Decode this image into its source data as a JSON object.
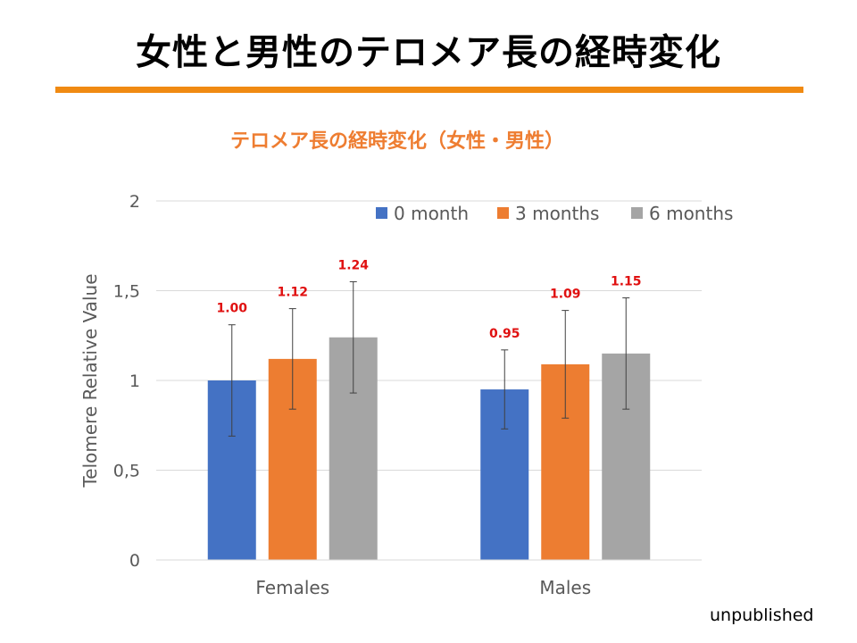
{
  "slide": {
    "title": "女性と男性のテロメア長の経時変化",
    "footnote": "unpublished"
  },
  "colors": {
    "accent_rule": "#f08a12",
    "chart_title": "#ee7d31",
    "data_label": "#e01010"
  },
  "chart_data": {
    "type": "bar",
    "title": "テロメア長の経時変化（女性・男性）",
    "xlabel": "",
    "ylabel": "Telomere Relative Value",
    "categories": [
      "Females",
      "Males"
    ],
    "ylim": [
      0,
      2
    ],
    "yticks": [
      0,
      0.5,
      1,
      1.5,
      2
    ],
    "ytick_labels": [
      "0",
      "0,5",
      "1",
      "1,5",
      "2"
    ],
    "grid": true,
    "legend_position": "top-right",
    "series": [
      {
        "name": "0 month",
        "color": "#4472c4",
        "values": [
          1.0,
          0.95
        ],
        "labels": [
          "1.00",
          "0.95"
        ],
        "error": [
          0.31,
          0.22
        ]
      },
      {
        "name": "3 months",
        "color": "#ed7d31",
        "values": [
          1.12,
          1.09
        ],
        "labels": [
          "1.12",
          "1.09"
        ],
        "error": [
          0.28,
          0.3
        ]
      },
      {
        "name": "6 months",
        "color": "#a5a5a5",
        "values": [
          1.24,
          1.15
        ],
        "labels": [
          "1.24",
          "1.15"
        ],
        "error": [
          0.31,
          0.31
        ]
      }
    ]
  }
}
